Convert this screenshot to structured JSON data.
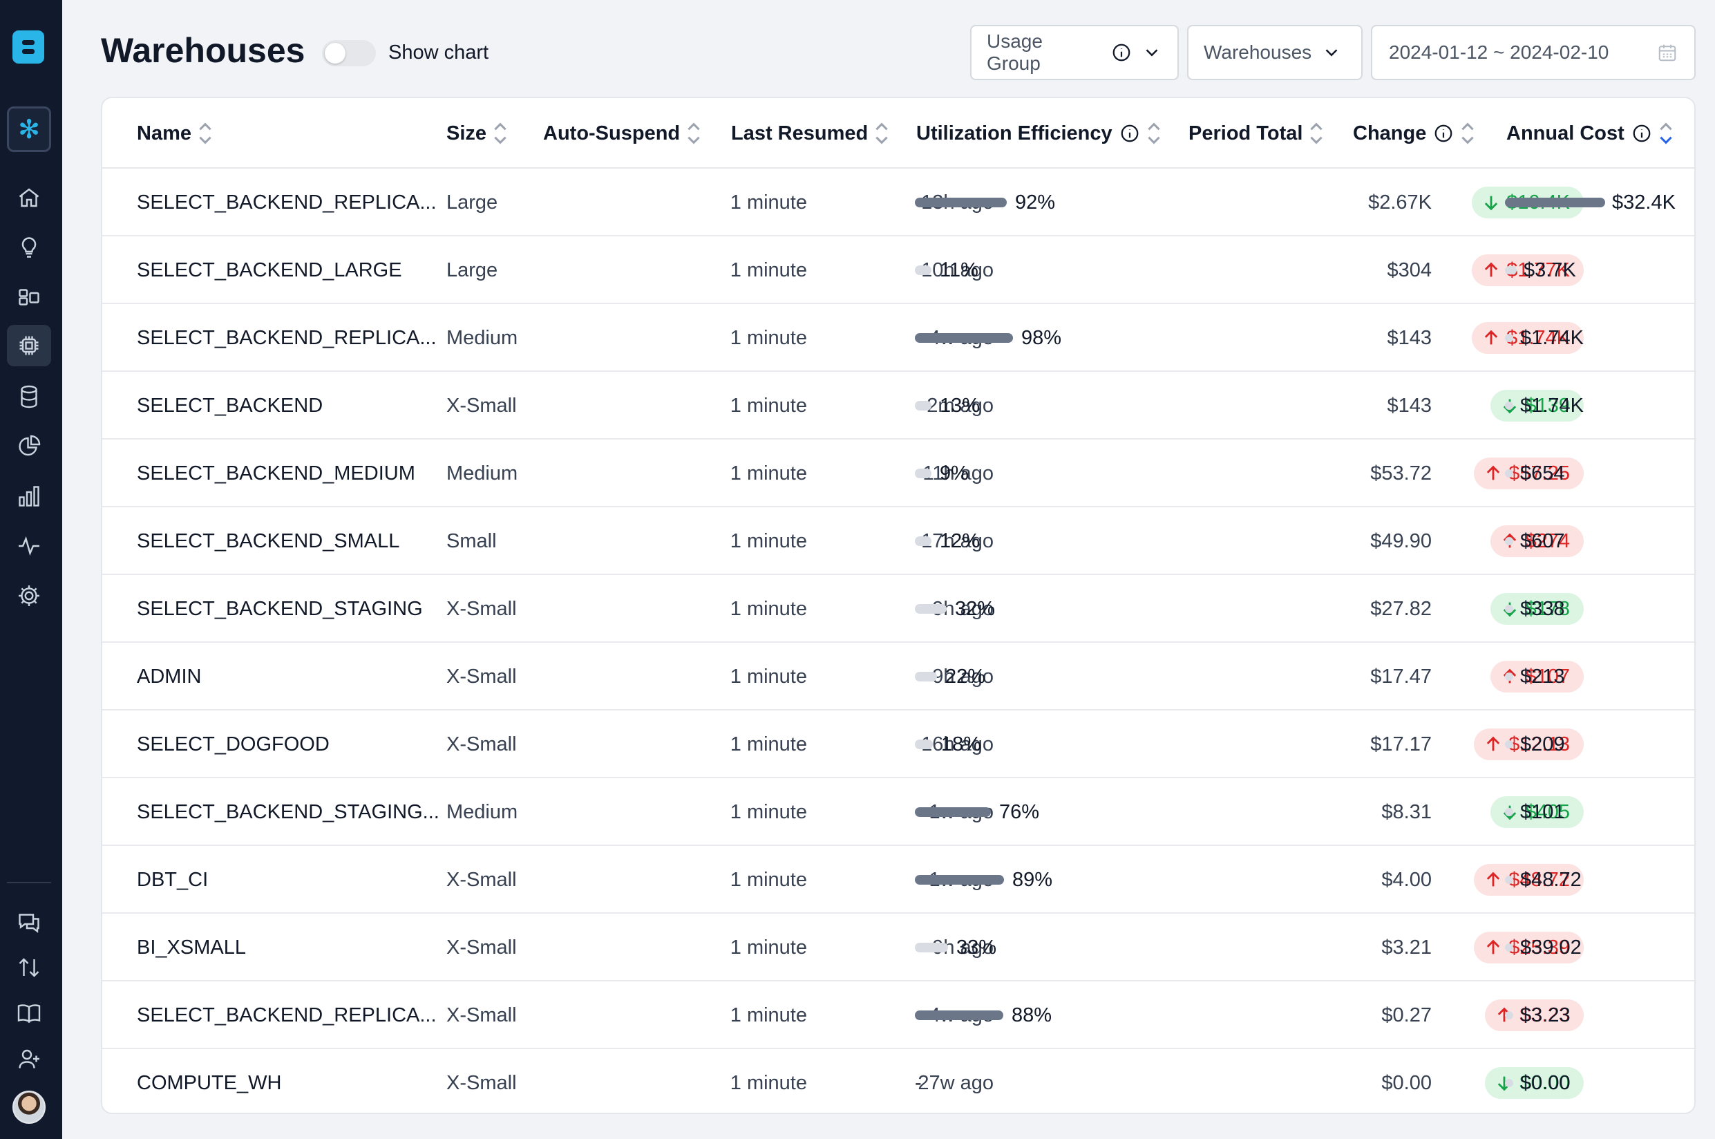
{
  "page": {
    "title": "Warehouses",
    "show_chart_label": "Show chart",
    "show_chart_on": false
  },
  "filters": {
    "usage_group_label": "Usage Group",
    "warehouses_label": "Warehouses",
    "date_range": "2024-01-12 ~ 2024-02-10"
  },
  "columns": {
    "name": "Name",
    "size": "Size",
    "auto_suspend": "Auto-Suspend",
    "last_resumed": "Last Resumed",
    "utilization": "Utilization Efficiency",
    "period_total": "Period Total",
    "change": "Change",
    "annual_cost": "Annual Cost"
  },
  "colors": {
    "bar_high": "#6b7789",
    "bar_low": "#d9dde3",
    "up": "#dc2626",
    "down": "#16a34a",
    "accent": "#29b5e8"
  },
  "rows": [
    {
      "name": "SELECT_BACKEND_REPLICA...",
      "size": "Large",
      "auto_suspend": "1 minute",
      "last_resumed": "13h ago",
      "util": 92,
      "util_label": "92%",
      "period_total": "$2.67K",
      "change": "$10.4K",
      "dir": "down",
      "annual": "$32.4K",
      "annual_frac": 1.0
    },
    {
      "name": "SELECT_BACKEND_LARGE",
      "size": "Large",
      "auto_suspend": "1 minute",
      "last_resumed": "10h ago",
      "util": 11,
      "util_label": "11%",
      "period_total": "$304",
      "change": "$1.77K",
      "dir": "up",
      "annual": "$3.7K",
      "annual_frac": 0.114
    },
    {
      "name": "SELECT_BACKEND_REPLICA...",
      "size": "Medium",
      "auto_suspend": "1 minute",
      "last_resumed": "4w ago",
      "util": 98,
      "util_label": "98%",
      "period_total": "$143",
      "change": "$1.74K",
      "dir": "up",
      "annual": "$1.74K",
      "annual_frac": 0.054
    },
    {
      "name": "SELECT_BACKEND",
      "size": "X-Small",
      "auto_suspend": "1 minute",
      "last_resumed": "2m ago",
      "util": 13,
      "util_label": "13%",
      "period_total": "$143",
      "change": "$139",
      "dir": "down",
      "annual": "$1.74K",
      "annual_frac": 0.054
    },
    {
      "name": "SELECT_BACKEND_MEDIUM",
      "size": "Medium",
      "auto_suspend": "1 minute",
      "last_resumed": "11h ago",
      "util": 9,
      "util_label": "9%",
      "period_total": "$53.72",
      "change": "$57.25",
      "dir": "up",
      "annual": "$654",
      "annual_frac": 0.02
    },
    {
      "name": "SELECT_BACKEND_SMALL",
      "size": "Small",
      "auto_suspend": "1 minute",
      "last_resumed": "17h ago",
      "util": 12,
      "util_label": "12%",
      "period_total": "$49.90",
      "change": "$274",
      "dir": "up",
      "annual": "$607",
      "annual_frac": 0.019
    },
    {
      "name": "SELECT_BACKEND_STAGING",
      "size": "X-Small",
      "auto_suspend": "1 minute",
      "last_resumed": "9h ago",
      "util": 32,
      "util_label": "32%",
      "period_total": "$27.82",
      "change": "$178",
      "dir": "down",
      "annual": "$338",
      "annual_frac": 0.01
    },
    {
      "name": "ADMIN",
      "size": "X-Small",
      "auto_suspend": "1 minute",
      "last_resumed": "9h ago",
      "util": 22,
      "util_label": "22%",
      "period_total": "$17.47",
      "change": "$107",
      "dir": "up",
      "annual": "$213",
      "annual_frac": 0.007
    },
    {
      "name": "SELECT_DOGFOOD",
      "size": "X-Small",
      "auto_suspend": "1 minute",
      "last_resumed": "16h ago",
      "util": 18,
      "util_label": "18%",
      "period_total": "$17.17",
      "change": "$12.13",
      "dir": "up",
      "annual": "$209",
      "annual_frac": 0.006
    },
    {
      "name": "SELECT_BACKEND_STAGING...",
      "size": "Medium",
      "auto_suspend": "1 minute",
      "last_resumed": "1w ago",
      "util": 76,
      "util_label": "76%",
      "period_total": "$8.31",
      "change": "$405",
      "dir": "down",
      "annual": "$101",
      "annual_frac": 0.003
    },
    {
      "name": "DBT_CI",
      "size": "X-Small",
      "auto_suspend": "1 minute",
      "last_resumed": "1w ago",
      "util": 89,
      "util_label": "89%",
      "period_total": "$4.00",
      "change": "$48.72",
      "dir": "up",
      "annual": "$48.72",
      "annual_frac": 0.0015
    },
    {
      "name": "BI_XSMALL",
      "size": "X-Small",
      "auto_suspend": "1 minute",
      "last_resumed": "9h ago",
      "util": 33,
      "util_label": "33%",
      "period_total": "$3.21",
      "change": "$25.39",
      "dir": "up",
      "annual": "$39.02",
      "annual_frac": 0.0012
    },
    {
      "name": "SELECT_BACKEND_REPLICA...",
      "size": "X-Small",
      "auto_suspend": "1 minute",
      "last_resumed": "4w ago",
      "util": 88,
      "util_label": "88%",
      "period_total": "$0.27",
      "change": "$3.23",
      "dir": "up",
      "annual": "$3.23",
      "annual_frac": 0.0001
    },
    {
      "name": "COMPUTE_WH",
      "size": "X-Small",
      "auto_suspend": "1 minute",
      "last_resumed": "27w ago",
      "util": null,
      "util_label": "-",
      "period_total": "$0.00",
      "change": "$0.00",
      "dir": "down",
      "annual": "$0.00",
      "annual_frac": 0
    }
  ]
}
